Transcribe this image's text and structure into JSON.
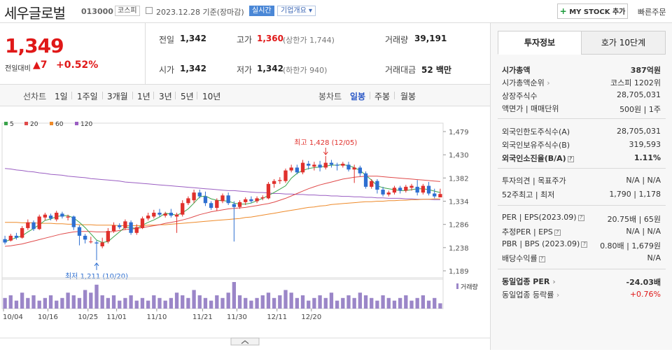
{
  "header": {
    "company": "세우글로벌",
    "code": "013000",
    "market": "코스피",
    "date": "2023.12.28 기준(장마감)",
    "live": "실시간",
    "corp_info": "기업개요",
    "my_stock": "MY STOCK 추가",
    "quick_order": "빠른주문"
  },
  "quote": {
    "price": "1,349",
    "change_label": "전일대비",
    "change_value": "7",
    "change_pct": "+0.52%",
    "prev_label": "전일",
    "prev": "1,342",
    "high_label": "고가",
    "high": "1,360",
    "upper_limit": "(상한가 1,744)",
    "volume_label": "거래량",
    "volume": "39,191",
    "open_label": "시가",
    "open": "1,342",
    "low_label": "저가",
    "low": "1,342",
    "lower_limit": "(하한가 940)",
    "amount_label": "거래대금",
    "amount": "52 백만"
  },
  "tabs": {
    "line_chart": "선차트",
    "d1": "1일",
    "w1": "1주일",
    "m3": "3개월",
    "y1": "1년",
    "y3": "3년",
    "y5": "5년",
    "y10": "10년",
    "candle": "봉차트",
    "day": "일봉",
    "week": "주봉",
    "month": "월봉"
  },
  "chart_data": {
    "type": "candlestick",
    "ma_legend": [
      {
        "name": "5",
        "color": "#3aa34a"
      },
      {
        "name": "20",
        "color": "#e04a4a"
      },
      {
        "name": "60",
        "color": "#ee8a2a"
      },
      {
        "name": "120",
        "color": "#9a5ec2"
      }
    ],
    "y_ticks": [
      "1,479",
      "1,430",
      "1,382",
      "1,334",
      "1,286",
      "1,238",
      "1,189"
    ],
    "x_ticks": [
      "10/04",
      "10/16",
      "10/25",
      "11/01",
      "11/10",
      "11/21",
      "11/30",
      "12/11",
      "12/20"
    ],
    "high_annotation": "최고 1,428 (12/05)",
    "low_annotation": "최저 1,211 (10/20)",
    "volume_label": "거래량",
    "candles": [
      [
        1255,
        1248,
        1262,
        1244
      ],
      [
        1252,
        1262,
        1266,
        1250
      ],
      [
        1262,
        1258,
        1268,
        1254
      ],
      [
        1258,
        1278,
        1282,
        1256
      ],
      [
        1278,
        1290,
        1296,
        1274
      ],
      [
        1290,
        1276,
        1294,
        1272
      ],
      [
        1276,
        1302,
        1306,
        1274
      ],
      [
        1300,
        1306,
        1310,
        1294
      ],
      [
        1304,
        1298,
        1308,
        1294
      ],
      [
        1296,
        1310,
        1314,
        1292
      ],
      [
        1308,
        1302,
        1312,
        1298
      ],
      [
        1300,
        1302,
        1306,
        1294
      ],
      [
        1302,
        1280,
        1304,
        1274
      ],
      [
        1280,
        1262,
        1284,
        1242
      ],
      [
        1262,
        1254,
        1266,
        1246
      ],
      [
        1250,
        1250,
        1260,
        1246
      ],
      [
        1248,
        1246,
        1252,
        1211
      ],
      [
        1240,
        1248,
        1258,
        1236
      ],
      [
        1250,
        1272,
        1278,
        1246
      ],
      [
        1272,
        1284,
        1290,
        1268
      ],
      [
        1284,
        1280,
        1288,
        1276
      ],
      [
        1278,
        1292,
        1296,
        1274
      ],
      [
        1290,
        1268,
        1294,
        1264
      ],
      [
        1268,
        1280,
        1286,
        1264
      ],
      [
        1278,
        1298,
        1302,
        1276
      ],
      [
        1298,
        1304,
        1310,
        1294
      ],
      [
        1302,
        1310,
        1316,
        1298
      ],
      [
        1310,
        1306,
        1318,
        1302
      ],
      [
        1304,
        1308,
        1312,
        1300
      ],
      [
        1310,
        1304,
        1318,
        1300
      ],
      [
        1302,
        1306,
        1310,
        1268
      ],
      [
        1306,
        1330,
        1336,
        1302
      ],
      [
        1330,
        1340,
        1344,
        1326
      ],
      [
        1336,
        1352,
        1358,
        1330
      ],
      [
        1352,
        1344,
        1358,
        1340
      ],
      [
        1344,
        1330,
        1354,
        1324
      ],
      [
        1330,
        1320,
        1334,
        1316
      ],
      [
        1320,
        1336,
        1340,
        1314
      ],
      [
        1334,
        1346,
        1350,
        1330
      ],
      [
        1346,
        1330,
        1352,
        1326
      ],
      [
        1328,
        1322,
        1334,
        1250
      ],
      [
        1322,
        1332,
        1336,
        1318
      ],
      [
        1332,
        1338,
        1342,
        1326
      ],
      [
        1338,
        1334,
        1344,
        1330
      ],
      [
        1334,
        1340,
        1344,
        1330
      ],
      [
        1340,
        1342,
        1346,
        1336
      ],
      [
        1340,
        1370,
        1374,
        1338
      ],
      [
        1370,
        1376,
        1380,
        1362
      ],
      [
        1376,
        1378,
        1384,
        1370
      ],
      [
        1376,
        1398,
        1402,
        1372
      ],
      [
        1398,
        1404,
        1410,
        1394
      ],
      [
        1404,
        1394,
        1410,
        1390
      ],
      [
        1394,
        1414,
        1420,
        1390
      ],
      [
        1412,
        1408,
        1418,
        1400
      ],
      [
        1406,
        1410,
        1416,
        1398
      ],
      [
        1410,
        1404,
        1418,
        1396
      ],
      [
        1404,
        1414,
        1428,
        1400
      ],
      [
        1414,
        1410,
        1420,
        1404
      ],
      [
        1410,
        1408,
        1414,
        1398
      ],
      [
        1408,
        1412,
        1416,
        1404
      ],
      [
        1410,
        1400,
        1416,
        1396
      ],
      [
        1400,
        1404,
        1410,
        1372
      ],
      [
        1404,
        1392,
        1408,
        1386
      ],
      [
        1392,
        1364,
        1396,
        1360
      ],
      [
        1364,
        1376,
        1380,
        1360
      ],
      [
        1376,
        1358,
        1380,
        1350
      ],
      [
        1358,
        1348,
        1364,
        1344
      ],
      [
        1348,
        1352,
        1356,
        1344
      ],
      [
        1352,
        1362,
        1366,
        1348
      ],
      [
        1362,
        1356,
        1366,
        1350
      ],
      [
        1356,
        1364,
        1368,
        1352
      ],
      [
        1362,
        1366,
        1370,
        1356
      ],
      [
        1364,
        1352,
        1378,
        1346
      ],
      [
        1352,
        1366,
        1370,
        1348
      ],
      [
        1366,
        1350,
        1374,
        1346
      ],
      [
        1350,
        1344,
        1360,
        1340
      ],
      [
        1342,
        1349,
        1360,
        1342
      ]
    ],
    "ma5": [
      1250,
      1254,
      1258,
      1262,
      1270,
      1277,
      1285,
      1294,
      1297,
      1302,
      1304,
      1304,
      1299,
      1290,
      1279,
      1266,
      1253,
      1248,
      1250,
      1260,
      1270,
      1280,
      1279,
      1277,
      1284,
      1290,
      1295,
      1301,
      1309,
      1307,
      1305,
      1310,
      1318,
      1330,
      1343,
      1345,
      1339,
      1336,
      1335,
      1334,
      1330,
      1328,
      1328,
      1330,
      1335,
      1340,
      1346,
      1352,
      1359,
      1366,
      1382,
      1392,
      1398,
      1402,
      1404,
      1405,
      1407,
      1409,
      1409,
      1410,
      1408,
      1404,
      1398,
      1388,
      1378,
      1366,
      1362,
      1360,
      1358,
      1356,
      1356,
      1358,
      1360,
      1360,
      1358,
      1355,
      1352
    ],
    "ma20": [
      1240,
      1241,
      1243,
      1245,
      1248,
      1251,
      1254,
      1257,
      1260,
      1263,
      1266,
      1268,
      1270,
      1271,
      1271,
      1271,
      1270,
      1270,
      1270,
      1271,
      1273,
      1275,
      1276,
      1277,
      1279,
      1281,
      1283,
      1285,
      1288,
      1290,
      1292,
      1295,
      1298,
      1302,
      1306,
      1309,
      1312,
      1314,
      1316,
      1318,
      1319,
      1320,
      1321,
      1323,
      1325,
      1327,
      1329,
      1332,
      1336,
      1340,
      1345,
      1350,
      1355,
      1360,
      1364,
      1368,
      1371,
      1374,
      1377,
      1380,
      1382,
      1384,
      1385,
      1386,
      1386,
      1386,
      1385,
      1384,
      1383,
      1382,
      1381,
      1380,
      1379,
      1378,
      1377,
      1376,
      1375
    ],
    "ma60": [
      1290,
      1290,
      1290,
      1289,
      1289,
      1289,
      1288,
      1288,
      1288,
      1287,
      1287,
      1286,
      1286,
      1285,
      1285,
      1285,
      1284,
      1284,
      1284,
      1284,
      1283,
      1283,
      1283,
      1283,
      1283,
      1284,
      1284,
      1285,
      1285,
      1286,
      1287,
      1288,
      1289,
      1290,
      1291,
      1292,
      1293,
      1294,
      1295,
      1296,
      1297,
      1298,
      1300,
      1301,
      1303,
      1305,
      1307,
      1309,
      1311,
      1313,
      1315,
      1317,
      1319,
      1321,
      1322,
      1324,
      1325,
      1327,
      1328,
      1329,
      1330,
      1331,
      1332,
      1333,
      1333,
      1334,
      1334,
      1335,
      1335,
      1336,
      1336,
      1337,
      1337,
      1338,
      1338,
      1339,
      1339
    ],
    "ma120": [
      1402,
      1401,
      1399,
      1398,
      1396,
      1395,
      1393,
      1392,
      1390,
      1389,
      1388,
      1386,
      1385,
      1384,
      1383,
      1381,
      1380,
      1379,
      1378,
      1377,
      1376,
      1374,
      1373,
      1372,
      1371,
      1370,
      1369,
      1368,
      1367,
      1366,
      1365,
      1364,
      1363,
      1362,
      1361,
      1360,
      1359,
      1358,
      1357,
      1356,
      1356,
      1355,
      1354,
      1353,
      1352,
      1352,
      1351,
      1350,
      1350,
      1349,
      1349,
      1348,
      1348,
      1347,
      1347,
      1346,
      1346,
      1345,
      1345,
      1344,
      1344,
      1343,
      1343,
      1342,
      1342,
      1341,
      1341,
      1340,
      1340,
      1340,
      1339,
      1339,
      1338,
      1338,
      1338,
      1337,
      1337
    ],
    "volume": [
      4,
      5,
      3,
      6,
      4,
      5,
      3,
      4,
      5,
      3,
      4,
      6,
      5,
      4,
      7,
      6,
      9,
      5,
      4,
      5,
      3,
      4,
      5,
      3,
      4,
      3,
      5,
      4,
      3,
      4,
      6,
      5,
      4,
      7,
      5,
      4,
      3,
      5,
      4,
      6,
      10,
      5,
      4,
      3,
      4,
      5,
      6,
      4,
      5,
      7,
      6,
      4,
      5,
      3,
      4,
      5,
      4,
      6,
      3,
      4,
      5,
      4,
      6,
      5,
      4,
      3,
      5,
      4,
      3,
      4,
      5,
      3,
      4,
      5,
      3,
      4,
      2
    ]
  },
  "right": {
    "tab_info": "투자정보",
    "tab_hoga": "호가 10단계",
    "market_cap_label": "시가총액",
    "market_cap": "387억원",
    "cap_rank_label": "시가총액순위",
    "cap_rank": "코스피 1202위",
    "shares_label": "상장주식수",
    "shares": "28,705,031",
    "par_label": "액면가 | 매매단위",
    "par": "500원 | 1주",
    "foreign_limit_label": "외국인한도주식수(A)",
    "foreign_limit": "28,705,031",
    "foreign_hold_label": "외국인보유주식수(B)",
    "foreign_hold": "319,593",
    "foreign_ratio_label": "외국인소진율(B/A)",
    "foreign_ratio": "1.11%",
    "opinion_label": "투자의견 | 목표주가",
    "opinion": "N/A | N/A",
    "w52_label": "52주최고 | 최저",
    "w52": "1,790 | 1,178",
    "per_label": "PER | EPS(2023.09)",
    "per": "20.75배 | 65원",
    "est_per_label": "추정PER | EPS",
    "est_per": "N/A | N/A",
    "pbr_label": "PBR | BPS (2023.09)",
    "pbr": "0.80배 | 1,679원",
    "div_label": "배당수익률",
    "div": "N/A",
    "sector_per_label": "동일업종 PER",
    "sector_per": "-24.03배",
    "sector_chg_label": "동일업종 등락률",
    "sector_chg": "+0.76%"
  }
}
